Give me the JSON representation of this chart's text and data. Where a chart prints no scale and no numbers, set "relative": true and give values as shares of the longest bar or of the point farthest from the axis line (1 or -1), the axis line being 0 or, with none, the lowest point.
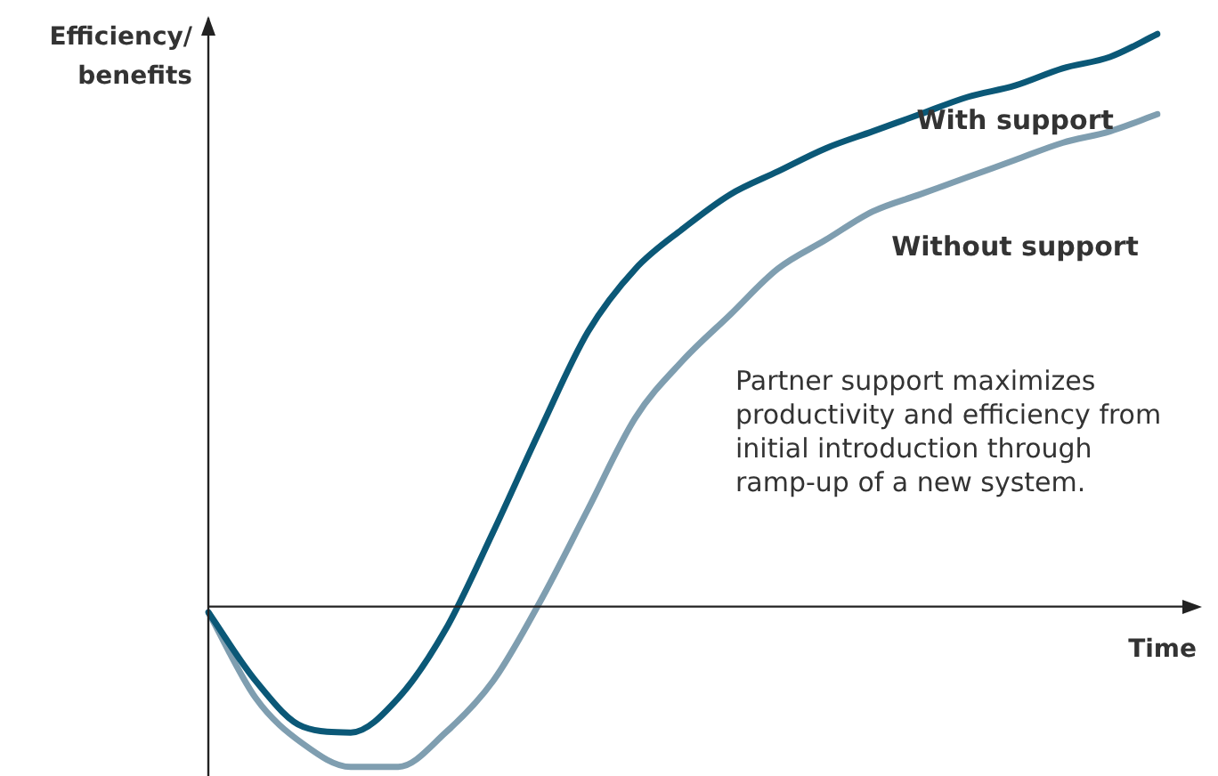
{
  "chart_data": {
    "type": "line",
    "relative": true,
    "xlabel": "Time",
    "ylabel": "Efficiency/ benefits",
    "categories": [
      null,
      null,
      null,
      null,
      null,
      null,
      null,
      null,
      null,
      null,
      null,
      null,
      null,
      null,
      null,
      null,
      null,
      null,
      null,
      null,
      null
    ],
    "series": [
      {
        "name": "With support",
        "color": "#0b5877",
        "values": [
          -0.01,
          -0.13,
          -0.21,
          -0.22,
          -0.16,
          -0.04,
          0.13,
          0.31,
          0.48,
          0.59,
          0.66,
          0.72,
          0.76,
          0.8,
          0.83,
          0.86,
          0.89,
          0.91,
          0.94,
          0.96,
          1.0
        ]
      },
      {
        "name": "Without support",
        "color": "#7f9eb0",
        "values": [
          -0.01,
          -0.16,
          -0.24,
          -0.28,
          -0.28,
          -0.22,
          -0.13,
          0.01,
          0.17,
          0.33,
          0.43,
          0.51,
          0.59,
          0.64,
          0.69,
          0.72,
          0.75,
          0.78,
          0.81,
          0.83,
          0.86
        ]
      }
    ],
    "annotations": [
      "Partner support maximizes productivity and efficiency from initial introduction through ramp-up of a new system."
    ]
  }
}
